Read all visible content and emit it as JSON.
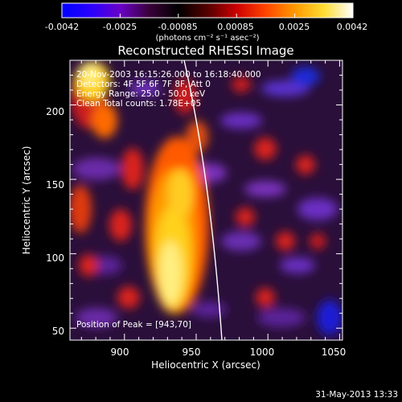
{
  "colorbar": {
    "ticks": [
      "-0.0042",
      "-0.0025",
      "-0.00085",
      "0.00085",
      "0.0025",
      "0.0042"
    ],
    "units": "(photons cm⁻² s⁻¹ asec⁻²)",
    "stops": [
      "#0000ff",
      "#2a00ff",
      "#6a00c8",
      "#3a003a",
      "#000000",
      "#550000",
      "#cc0000",
      "#ff4400",
      "#ff9900",
      "#ffdd33",
      "#ffffff"
    ]
  },
  "title": "Reconstructed RHESSI Image",
  "info": {
    "line1": "20-Nov-2003 16:15:26.000 to 16:18:40.000",
    "line2": "Detectors: 4F 5F 6F 7F 8F, Att 0",
    "line3": "Energy Range: 25.0 - 50.0 keV",
    "line4": "Clean    Total counts: 1.78E+05"
  },
  "peak_label": "Position of Peak = [943,70]",
  "axes": {
    "xlabel": "Heliocentric X (arcsec)",
    "ylabel": "Heliocentric Y (arcsec)",
    "xticks": [
      "900",
      "950",
      "1000",
      "1050"
    ],
    "yticks": [
      "50",
      "100",
      "150",
      "200"
    ],
    "xlim": [
      862,
      1052
    ],
    "ylim": [
      42,
      230
    ]
  },
  "timestamp": "31-May-2013 13:33"
}
